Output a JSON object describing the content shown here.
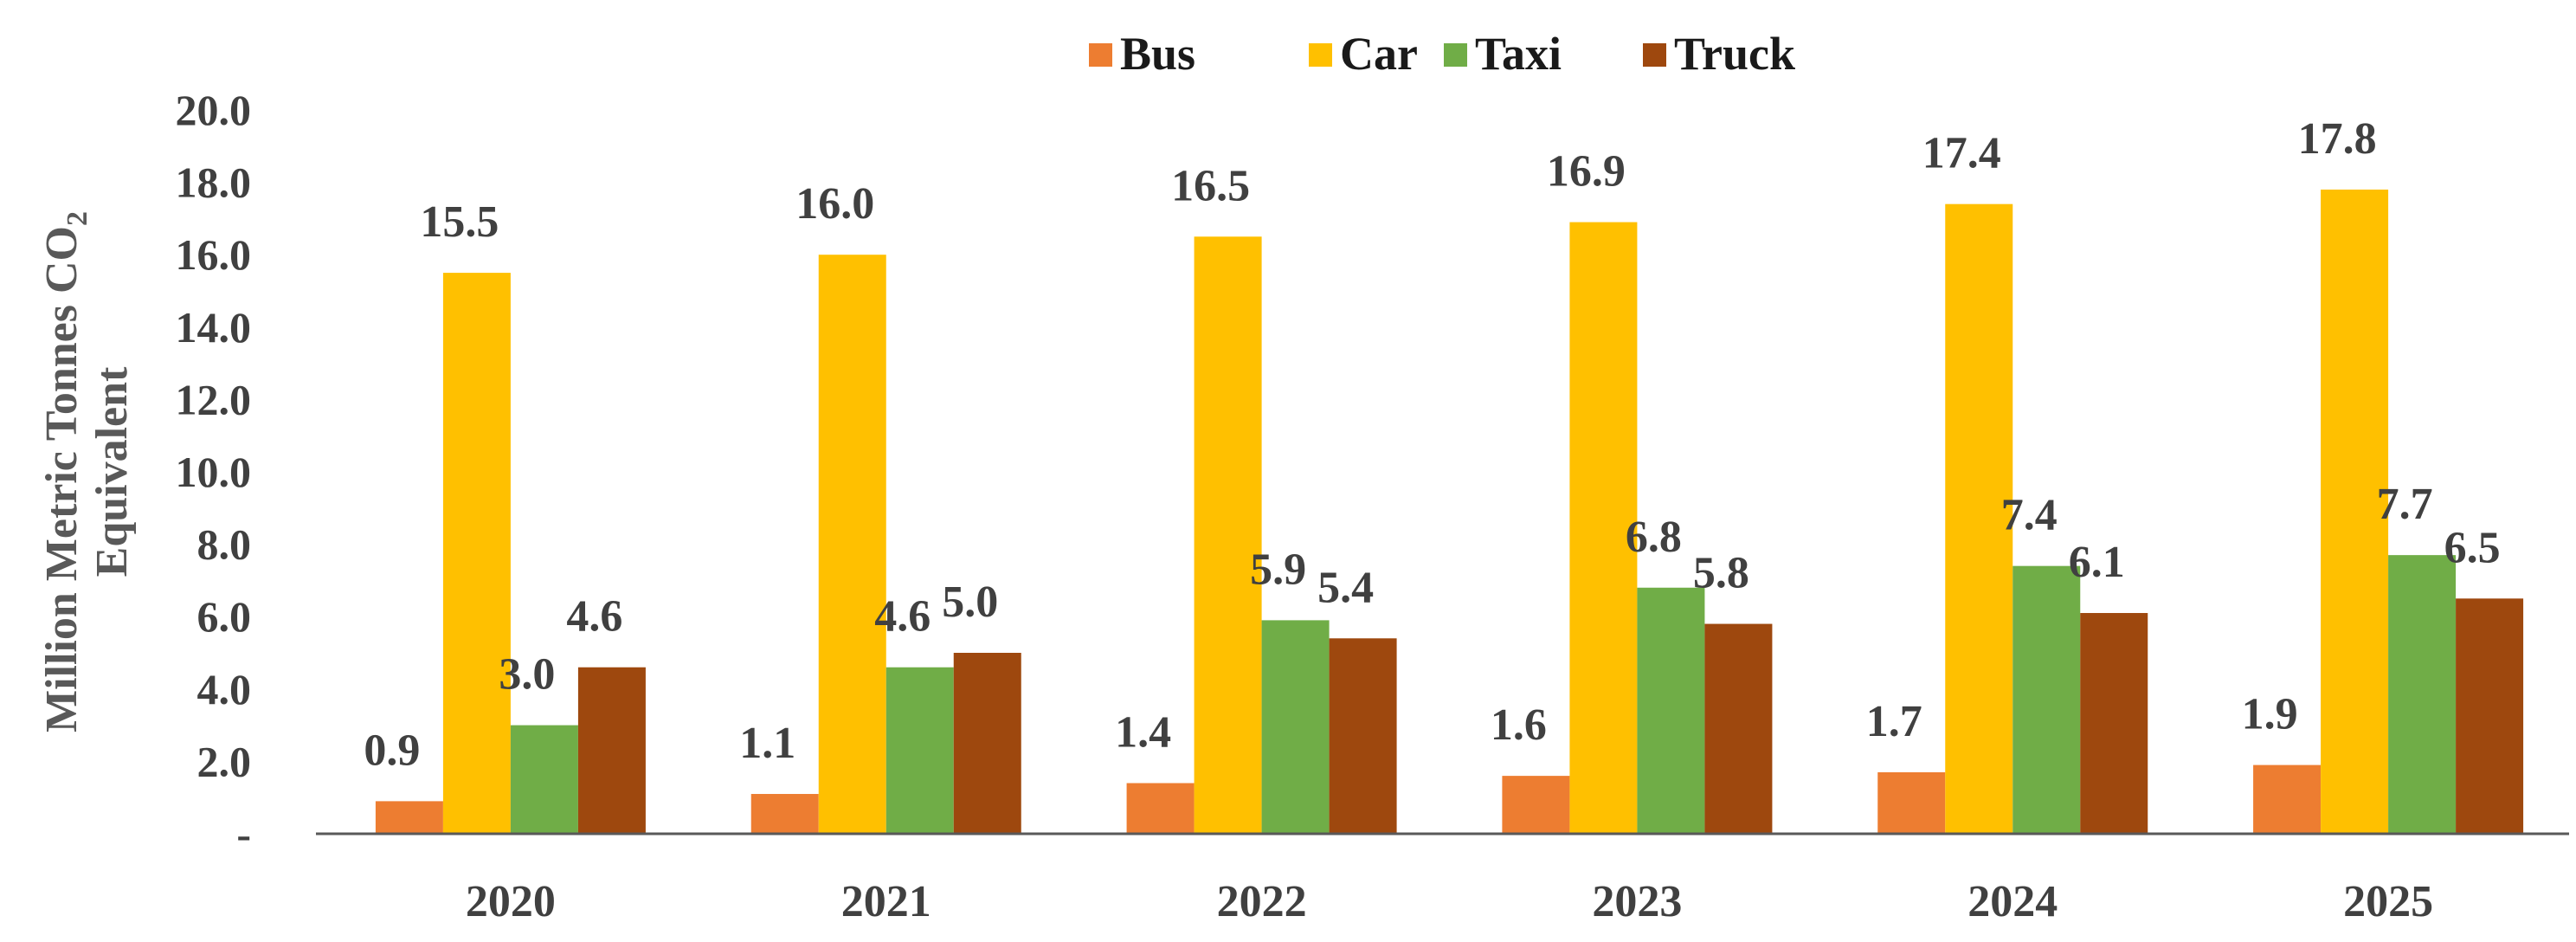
{
  "chart_data": {
    "type": "bar",
    "title": "",
    "xlabel": "",
    "ylabel_line1": "Million Metric Tonnes CO",
    "ylabel_sub": "2",
    "ylabel_line2": "Equivalent",
    "ylim": [
      0,
      20
    ],
    "y_ticks": [
      0,
      2,
      4,
      6,
      8,
      10,
      12,
      14,
      16,
      18,
      20
    ],
    "y_tick_labels": [
      "-",
      "2.0",
      "4.0",
      "6.0",
      "8.0",
      "10.0",
      "12.0",
      "14.0",
      "16.0",
      "18.0",
      "20.0"
    ],
    "categories": [
      "2020",
      "2021",
      "2022",
      "2023",
      "2024",
      "2025"
    ],
    "legend_position": "top-center",
    "series": [
      {
        "name": "Bus",
        "color": "#ED7D31",
        "values": [
          0.9,
          1.1,
          1.4,
          1.6,
          1.7,
          1.9
        ],
        "labels": [
          "0.9",
          "1.1",
          "1.4",
          "1.6",
          "1.7",
          "1.9"
        ]
      },
      {
        "name": "Car",
        "color": "#FFC000",
        "values": [
          15.5,
          16.0,
          16.5,
          16.9,
          17.4,
          17.8
        ],
        "labels": [
          "15.5",
          "16.0",
          "16.5",
          "16.9",
          "17.4",
          "17.8"
        ]
      },
      {
        "name": "Taxi",
        "color": "#70AD47",
        "values": [
          3.0,
          4.6,
          5.9,
          6.8,
          7.4,
          7.7
        ],
        "labels": [
          "3.0",
          "4.6",
          "5.9",
          "6.8",
          "7.4",
          "7.7"
        ]
      },
      {
        "name": "Truck",
        "color": "#9E480E",
        "values": [
          4.6,
          5.0,
          5.4,
          5.8,
          6.1,
          6.5
        ],
        "labels": [
          "4.6",
          "5.0",
          "5.4",
          "5.8",
          "6.1",
          "6.5"
        ]
      }
    ]
  }
}
